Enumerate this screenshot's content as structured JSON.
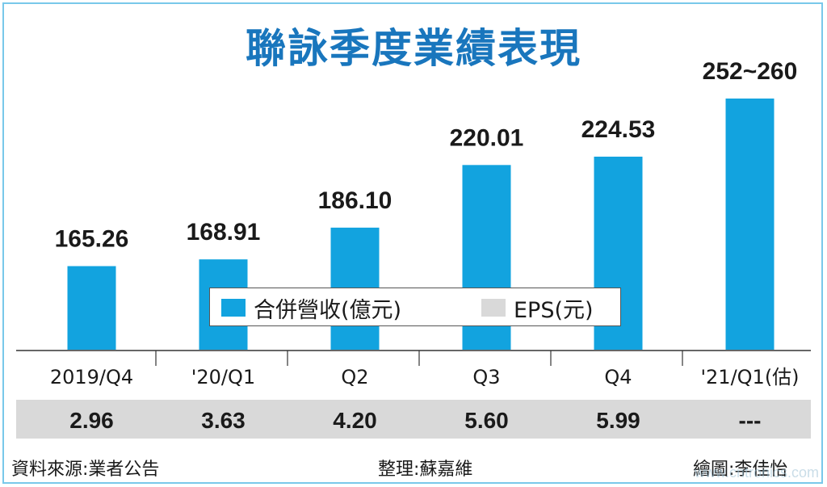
{
  "title": "聯詠季度業績表現",
  "legend": {
    "revenue": "合併營收(億元)",
    "eps": "EPS(元)"
  },
  "footer": {
    "source": "資料來源:業者公告",
    "editor": "整理:蘇嘉維",
    "artist": "繪圖:李佳怡"
  },
  "watermark": "www.cntronics.com",
  "colors": {
    "bar": "#12a3df",
    "eps_band": "#d9d9d9",
    "title": "#1976bd",
    "frame": "#79c8ea"
  },
  "chart_data": {
    "type": "bar",
    "categories": [
      "2019/Q4",
      "'20/Q1",
      "Q2",
      "Q3",
      "Q4",
      "'21/Q1(估)"
    ],
    "series": [
      {
        "name": "合併營收(億元)",
        "values": [
          165.26,
          168.91,
          186.1,
          220.01,
          224.53,
          256
        ],
        "value_labels": [
          "165.26",
          "168.91",
          "186.10",
          "220.01",
          "224.53",
          "252~260"
        ]
      },
      {
        "name": "EPS(元)",
        "values": [
          2.96,
          3.63,
          4.2,
          5.6,
          5.99,
          null
        ],
        "value_labels": [
          "2.96",
          "3.63",
          "4.20",
          "5.60",
          "5.99",
          "---"
        ]
      }
    ],
    "ylim": [
      120,
      270
    ]
  }
}
